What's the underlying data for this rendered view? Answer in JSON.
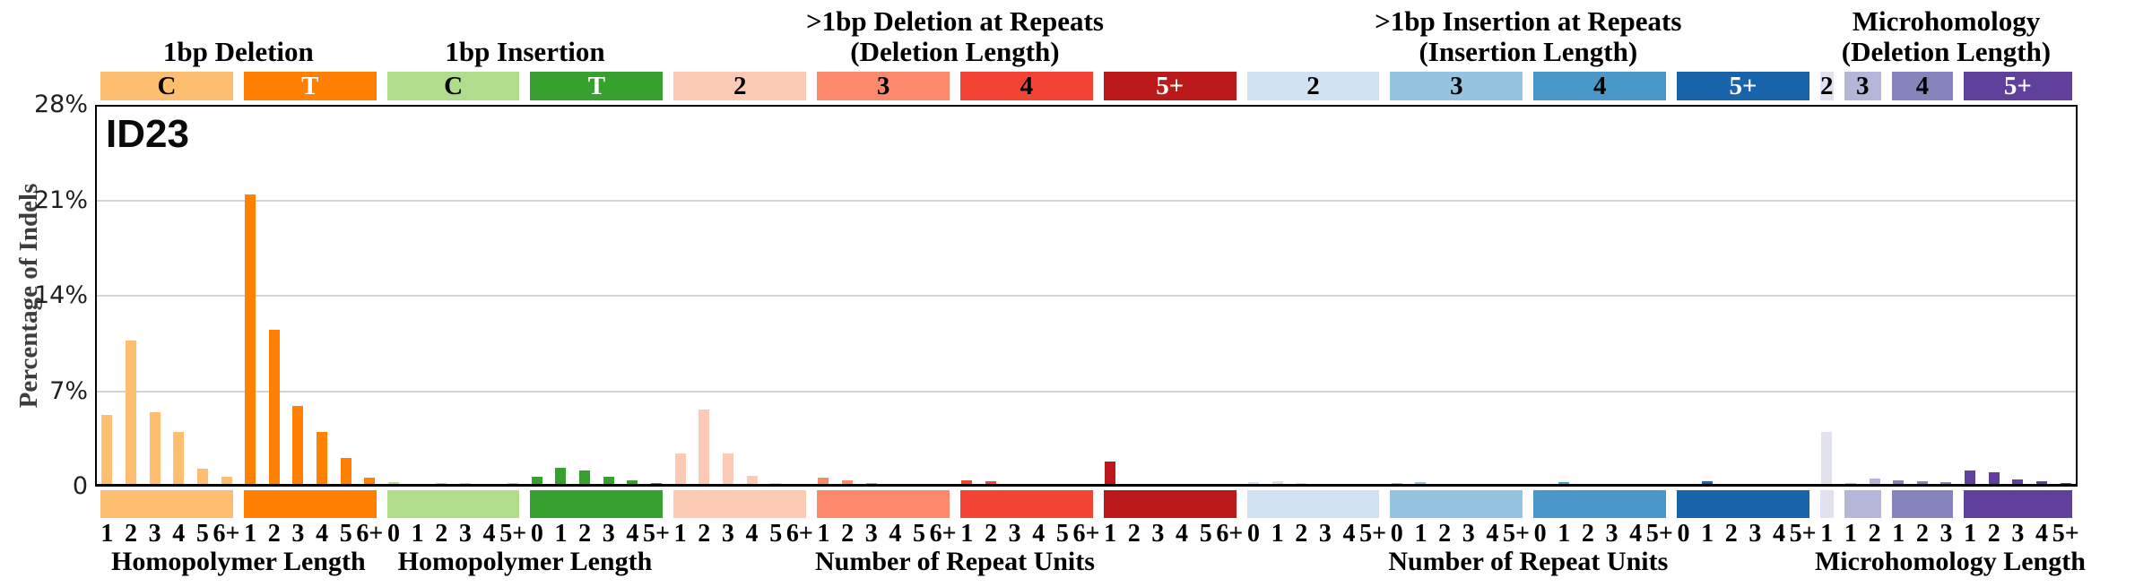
{
  "figure_title": "ID23",
  "chart_data": {
    "type": "bar",
    "title": "ID23",
    "ylabel": "Percentage of Indels",
    "ylim": [
      0,
      28
    ],
    "grid": "horizontal",
    "legend": "none",
    "yticks": [
      {
        "value": 0,
        "label": "0"
      },
      {
        "value": 7,
        "label": "7%"
      },
      {
        "value": 14,
        "label": "14%"
      },
      {
        "value": 21,
        "label": "21%"
      },
      {
        "value": 28,
        "label": "28%"
      }
    ],
    "sections": [
      {
        "title": "1bp Deletion",
        "axis_label": "Homopolymer Length",
        "groups": [
          0,
          1
        ]
      },
      {
        "title": "1bp Insertion",
        "axis_label": "Homopolymer Length",
        "groups": [
          2,
          3
        ]
      },
      {
        "title": ">1bp Deletion at Repeats\n(Deletion Length)",
        "axis_label": "Number of Repeat Units",
        "groups": [
          4,
          5,
          6,
          7
        ]
      },
      {
        "title": ">1bp Insertion at Repeats\n(Insertion Length)",
        "axis_label": "Number of Repeat Units",
        "groups": [
          8,
          9,
          10,
          11
        ]
      },
      {
        "title": "Microhomology\n(Deletion Length)",
        "axis_label": "Microhomology Length",
        "groups": [
          12,
          13,
          14,
          15
        ]
      }
    ],
    "groups": [
      {
        "label": "C",
        "color": "#FDBE6F",
        "label_text_color": "#000000",
        "categories": [
          "1",
          "2",
          "3",
          "4",
          "5",
          "6+"
        ],
        "values": [
          5.1,
          10.6,
          5.3,
          3.9,
          1.2,
          0.6
        ]
      },
      {
        "label": "T",
        "color": "#FF8002",
        "label_text_color": "#ffffff",
        "categories": [
          "1",
          "2",
          "3",
          "4",
          "5",
          "6+"
        ],
        "values": [
          21.3,
          11.4,
          5.8,
          3.9,
          2.0,
          0.5
        ]
      },
      {
        "label": "C",
        "color": "#B0DD8B",
        "label_text_color": "#000000",
        "categories": [
          "0",
          "1",
          "2",
          "3",
          "4",
          "5+"
        ],
        "values": [
          0.2,
          0.05,
          0.15,
          0.1,
          0.05,
          0.15
        ]
      },
      {
        "label": "T",
        "color": "#36A12E",
        "label_text_color": "#ffffff",
        "categories": [
          "0",
          "1",
          "2",
          "3",
          "4",
          "5+"
        ],
        "values": [
          0.6,
          1.25,
          1.05,
          0.6,
          0.35,
          0.1
        ]
      },
      {
        "label": "2",
        "color": "#FDCAB5",
        "label_text_color": "#000000",
        "categories": [
          "1",
          "2",
          "3",
          "4",
          "5",
          "6+"
        ],
        "values": [
          2.3,
          5.5,
          2.3,
          0.65,
          0.15,
          0.05
        ]
      },
      {
        "label": "3",
        "color": "#FC8A6A",
        "label_text_color": "#000000",
        "categories": [
          "1",
          "2",
          "3",
          "4",
          "5",
          "6+"
        ],
        "values": [
          0.5,
          0.3,
          0.1,
          0.05,
          0.05,
          0.05
        ]
      },
      {
        "label": "4",
        "color": "#F14432",
        "label_text_color": "#000000",
        "categories": [
          "1",
          "2",
          "3",
          "4",
          "5",
          "6+"
        ],
        "values": [
          0.35,
          0.25,
          0.05,
          0.05,
          0.03,
          0.03
        ]
      },
      {
        "label": "5+",
        "color": "#BC191A",
        "label_text_color": "#ffffff",
        "categories": [
          "1",
          "2",
          "3",
          "4",
          "5",
          "6+"
        ],
        "values": [
          1.7,
          0.05,
          0.03,
          0.02,
          0.02,
          0.02
        ]
      },
      {
        "label": "2",
        "color": "#D0E1F2",
        "label_text_color": "#000000",
        "categories": [
          "0",
          "1",
          "2",
          "3",
          "4",
          "5+"
        ],
        "values": [
          0.22,
          0.26,
          0.1,
          0.07,
          0.05,
          0.04
        ]
      },
      {
        "label": "3",
        "color": "#94C4DF",
        "label_text_color": "#000000",
        "categories": [
          "0",
          "1",
          "2",
          "3",
          "4",
          "5+"
        ],
        "values": [
          0.1,
          0.17,
          0.05,
          0.03,
          0.03,
          0.03
        ]
      },
      {
        "label": "4",
        "color": "#4A98C9",
        "label_text_color": "#000000",
        "categories": [
          "0",
          "1",
          "2",
          "3",
          "4",
          "5+"
        ],
        "values": [
          0.05,
          0.22,
          0.05,
          0.03,
          0.02,
          0.02
        ]
      },
      {
        "label": "5+",
        "color": "#1764AB",
        "label_text_color": "#ffffff",
        "categories": [
          "0",
          "1",
          "2",
          "3",
          "4",
          "5+"
        ],
        "values": [
          0.07,
          0.25,
          0.03,
          0.02,
          0.02,
          0.02
        ]
      },
      {
        "label": "2",
        "color": "#E2E2EF",
        "label_text_color": "#000000",
        "categories": [
          "1"
        ],
        "values": [
          3.9
        ]
      },
      {
        "label": "3",
        "color": "#B6B6D8",
        "label_text_color": "#000000",
        "categories": [
          "1",
          "2"
        ],
        "values": [
          0.15,
          0.45
        ]
      },
      {
        "label": "4",
        "color": "#8683BD",
        "label_text_color": "#000000",
        "categories": [
          "1",
          "2",
          "3"
        ],
        "values": [
          0.3,
          0.26,
          0.2
        ]
      },
      {
        "label": "5+",
        "color": "#61409B",
        "label_text_color": "#ffffff",
        "categories": [
          "1",
          "2",
          "3",
          "4",
          "5+"
        ],
        "values": [
          1.05,
          0.9,
          0.4,
          0.28,
          0.1
        ]
      }
    ]
  }
}
